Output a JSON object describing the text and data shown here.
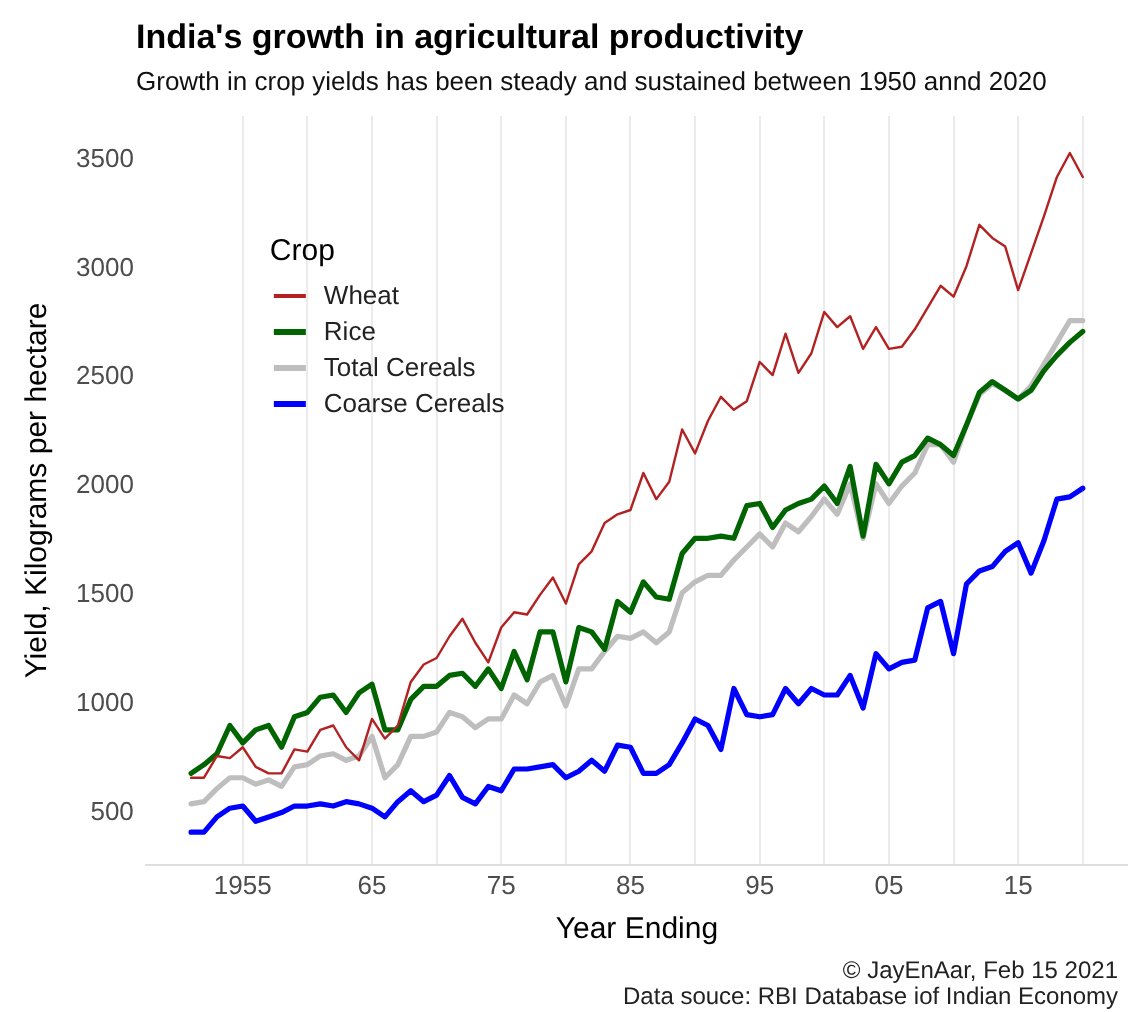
{
  "chart_data": {
    "type": "line",
    "title": "India's growth in agricultural productivity",
    "subtitle": "Growth in crop yields has been steady and sustained between 1950 annd 2020",
    "xlabel": "Year Ending",
    "ylabel": "Yield, Kilograms per hectare",
    "legend_title": "Crop",
    "annotations": [
      "© JayEnAar, Feb 15 2021",
      "Data souce: RBI Database iof Indian Economy"
    ],
    "x": [
      1951,
      1952,
      1953,
      1954,
      1955,
      1956,
      1957,
      1958,
      1959,
      1960,
      1961,
      1962,
      1963,
      1964,
      1965,
      1966,
      1967,
      1968,
      1969,
      1970,
      1971,
      1972,
      1973,
      1974,
      1975,
      1976,
      1977,
      1978,
      1979,
      1980,
      1981,
      1982,
      1983,
      1984,
      1985,
      1986,
      1987,
      1988,
      1989,
      1990,
      1991,
      1992,
      1993,
      1994,
      1995,
      1996,
      1997,
      1998,
      1999,
      2000,
      2001,
      2002,
      2003,
      2004,
      2005,
      2006,
      2007,
      2008,
      2009,
      2010,
      2011,
      2012,
      2013,
      2014,
      2015,
      2016,
      2017,
      2018,
      2019,
      2020
    ],
    "series": [
      {
        "name": "Wheat",
        "color": "#b22222",
        "values": [
          660,
          660,
          760,
          750,
          800,
          710,
          680,
          680,
          790,
          780,
          880,
          900,
          800,
          740,
          930,
          840,
          900,
          1100,
          1180,
          1210,
          1310,
          1390,
          1280,
          1190,
          1350,
          1420,
          1410,
          1500,
          1580,
          1460,
          1640,
          1700,
          1830,
          1870,
          1890,
          2060,
          1940,
          2020,
          2260,
          2150,
          2300,
          2410,
          2350,
          2390,
          2570,
          2510,
          2700,
          2520,
          2610,
          2800,
          2730,
          2780,
          2630,
          2730,
          2630,
          2640,
          2720,
          2820,
          2920,
          2870,
          3010,
          3200,
          3140,
          3100,
          2900,
          3070,
          3240,
          3420,
          3530,
          3420
        ]
      },
      {
        "name": "Rice",
        "color": "#006400",
        "values": [
          680,
          720,
          770,
          900,
          820,
          880,
          900,
          800,
          940,
          960,
          1030,
          1040,
          960,
          1050,
          1090,
          880,
          880,
          1020,
          1080,
          1080,
          1130,
          1140,
          1080,
          1160,
          1070,
          1240,
          1110,
          1330,
          1330,
          1100,
          1350,
          1330,
          1250,
          1470,
          1420,
          1560,
          1490,
          1480,
          1690,
          1760,
          1760,
          1770,
          1760,
          1910,
          1920,
          1810,
          1890,
          1920,
          1940,
          2000,
          1920,
          2090,
          1770,
          2100,
          2010,
          2110,
          2140,
          2220,
          2190,
          2140,
          2280,
          2430,
          2480,
          2440,
          2400,
          2440,
          2530,
          2600,
          2660,
          2710
        ]
      },
      {
        "name": "Total Cereals",
        "color": "#bebebe",
        "values": [
          540,
          550,
          610,
          660,
          660,
          630,
          650,
          620,
          710,
          720,
          760,
          770,
          740,
          760,
          850,
          660,
          720,
          850,
          850,
          870,
          960,
          940,
          890,
          930,
          930,
          1040,
          1000,
          1100,
          1130,
          990,
          1160,
          1160,
          1240,
          1310,
          1300,
          1330,
          1280,
          1330,
          1510,
          1560,
          1590,
          1590,
          1660,
          1720,
          1780,
          1720,
          1830,
          1790,
          1860,
          1940,
          1870,
          2010,
          1760,
          2010,
          1920,
          2000,
          2060,
          2190,
          2190,
          2110,
          2280,
          2420,
          2470,
          2440,
          2400,
          2460,
          2560,
          2660,
          2760,
          2760
        ]
      },
      {
        "name": "Coarse Cereals",
        "color": "#0000ff",
        "values": [
          410,
          410,
          480,
          520,
          530,
          460,
          480,
          500,
          530,
          530,
          540,
          530,
          550,
          540,
          520,
          480,
          550,
          600,
          550,
          580,
          670,
          570,
          540,
          620,
          600,
          700,
          700,
          710,
          720,
          660,
          690,
          740,
          690,
          810,
          800,
          680,
          680,
          720,
          820,
          930,
          900,
          790,
          1070,
          950,
          940,
          950,
          1070,
          1000,
          1070,
          1040,
          1040,
          1130,
          980,
          1230,
          1160,
          1190,
          1200,
          1440,
          1470,
          1230,
          1550,
          1610,
          1630,
          1700,
          1740,
          1600,
          1750,
          1940,
          1950,
          1990
        ]
      }
    ],
    "xlim": [
      1947.5,
      2023.5
    ],
    "xticks": [
      1955,
      {
        "value": 1960,
        "label": null
      },
      {
        "value": 1965,
        "label": "65"
      },
      {
        "value": 1970,
        "label": null
      },
      {
        "value": 1975,
        "label": "75"
      },
      {
        "value": 1980,
        "label": null
      },
      {
        "value": 1985,
        "label": "85"
      },
      {
        "value": 1990,
        "label": null
      },
      {
        "value": 1995,
        "label": "95"
      },
      {
        "value": 2000,
        "label": null
      },
      {
        "value": 2005,
        "label": "05"
      },
      {
        "value": 2010,
        "label": null
      },
      {
        "value": 2015,
        "label": "15"
      },
      {
        "value": 2020,
        "label": null
      }
    ],
    "ylim": [
      260,
      3700
    ],
    "yticks": [
      500,
      1000,
      1500,
      2000,
      2500,
      3000,
      3500
    ],
    "grid": "x",
    "legend": "top left",
    "marker": "none",
    "line_style": "solid"
  }
}
